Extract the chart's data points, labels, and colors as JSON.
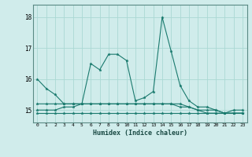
{
  "xlabel": "Humidex (Indice chaleur)",
  "ylabel": "",
  "background_color": "#d0eceb",
  "grid_color": "#aad8d4",
  "line_color": "#1a7a6e",
  "x_values": [
    0,
    1,
    2,
    3,
    4,
    5,
    6,
    7,
    8,
    9,
    10,
    11,
    12,
    13,
    14,
    15,
    16,
    17,
    18,
    19,
    20,
    21,
    22,
    23
  ],
  "series": [
    [
      16.0,
      15.7,
      15.5,
      15.2,
      15.2,
      15.2,
      16.5,
      16.3,
      16.8,
      16.8,
      16.6,
      15.3,
      15.4,
      15.6,
      18.0,
      16.9,
      15.8,
      15.3,
      15.1,
      15.1,
      15.0,
      14.9,
      15.0,
      15.0
    ],
    [
      15.2,
      15.2,
      15.2,
      15.2,
      15.2,
      15.2,
      15.2,
      15.2,
      15.2,
      15.2,
      15.2,
      15.2,
      15.2,
      15.2,
      15.2,
      15.2,
      15.2,
      15.1,
      15.0,
      14.9,
      14.9,
      14.9,
      14.9,
      14.9
    ],
    [
      14.9,
      14.9,
      14.9,
      14.9,
      14.9,
      14.9,
      14.9,
      14.9,
      14.9,
      14.9,
      14.9,
      14.9,
      14.9,
      14.9,
      14.9,
      14.9,
      14.9,
      14.9,
      14.9,
      14.9,
      14.9,
      14.9,
      14.9,
      14.9
    ],
    [
      15.0,
      15.0,
      15.0,
      15.1,
      15.1,
      15.2,
      15.2,
      15.2,
      15.2,
      15.2,
      15.2,
      15.2,
      15.2,
      15.2,
      15.2,
      15.2,
      15.1,
      15.1,
      15.0,
      15.0,
      15.0,
      14.9,
      14.9,
      14.9
    ]
  ],
  "ylim": [
    14.6,
    18.4
  ],
  "yticks": [
    15,
    16,
    17,
    18
  ],
  "xticks": [
    0,
    1,
    2,
    3,
    4,
    5,
    6,
    7,
    8,
    9,
    10,
    11,
    12,
    13,
    14,
    15,
    16,
    17,
    18,
    19,
    20,
    21,
    22,
    23
  ]
}
